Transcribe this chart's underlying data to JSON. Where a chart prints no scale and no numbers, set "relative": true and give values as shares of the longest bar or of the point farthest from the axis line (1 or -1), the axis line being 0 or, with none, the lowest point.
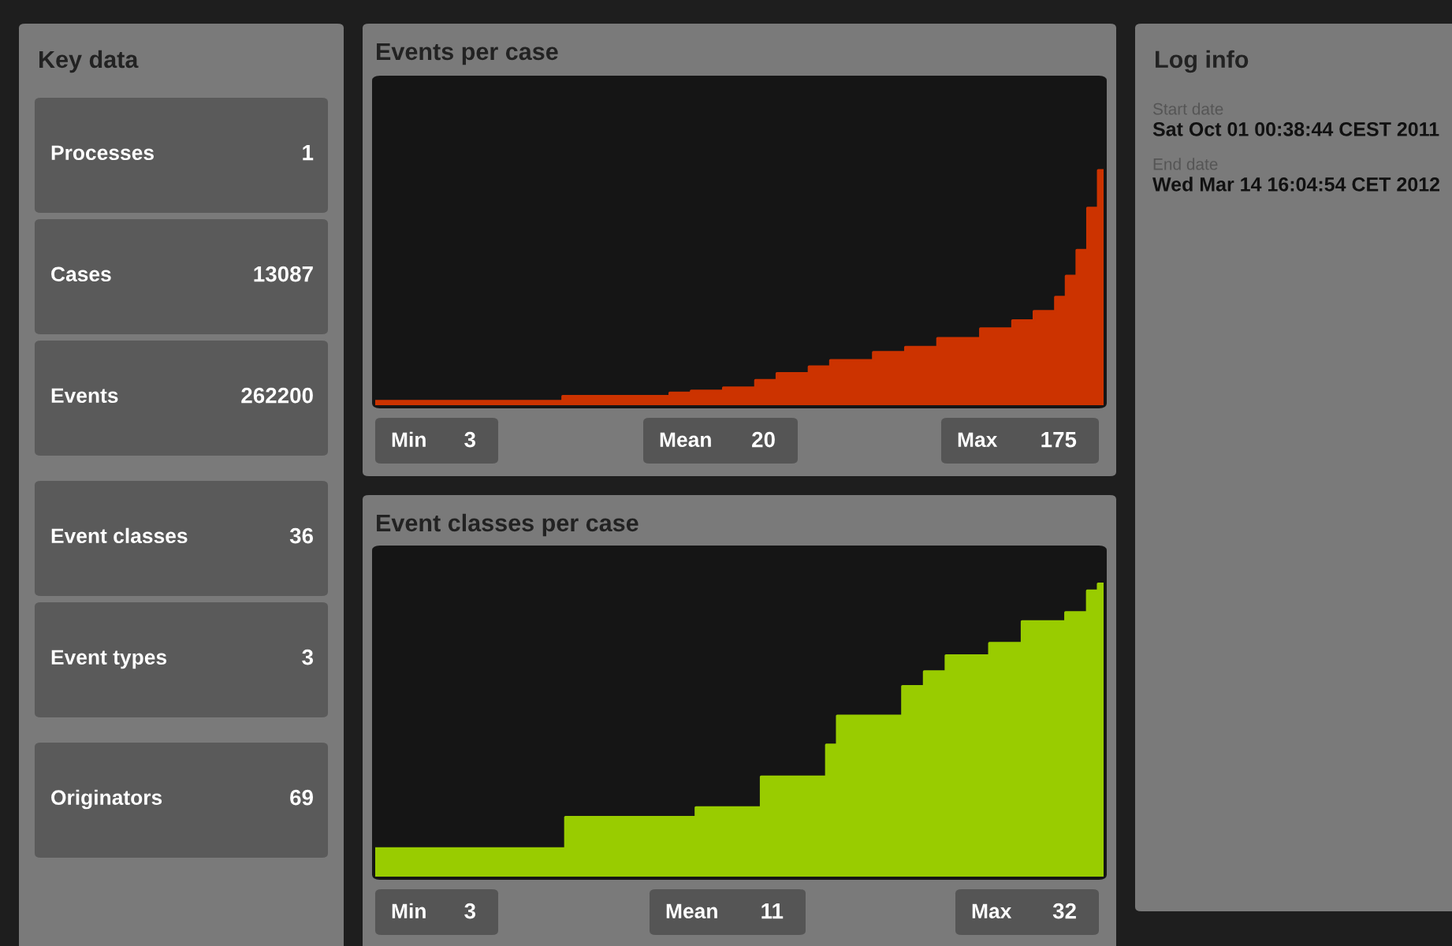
{
  "chart_data": [
    {
      "type": "other",
      "title": "Key data",
      "annotations": [
        "Processes",
        "1",
        "Cases",
        "13087",
        "Events",
        "262200",
        "Event classes",
        "36",
        "Event types",
        "3",
        "Originators",
        "69"
      ]
    },
    {
      "type": "area",
      "title": "Events per case",
      "color": "#cc3300",
      "relative": true,
      "annotations": [
        "Min",
        "3",
        "Mean",
        "20",
        "Max",
        "175"
      ],
      "categories": [
        null,
        null,
        null,
        null,
        null,
        null,
        null,
        null,
        null,
        null,
        null,
        null,
        null,
        null,
        null,
        null,
        null,
        null,
        null,
        null,
        null,
        null,
        null,
        null,
        null,
        null,
        null,
        null,
        null,
        null,
        null,
        null,
        null,
        null,
        null,
        null,
        null,
        null,
        null,
        null,
        null,
        null,
        null,
        null,
        null,
        null,
        null,
        null,
        null,
        null,
        null,
        null,
        null,
        null,
        null,
        null,
        null,
        null,
        null,
        null,
        null,
        null,
        null,
        null,
        null,
        null,
        null,
        null,
        null
      ],
      "values": [
        0.017,
        0.017,
        0.017,
        0.017,
        0.017,
        0.017,
        0.017,
        0.017,
        0.017,
        0.017,
        0.017,
        0.017,
        0.017,
        0.017,
        0.017,
        0.017,
        0.017,
        0.017,
        0.038,
        0.038,
        0.038,
        0.038,
        0.038,
        0.038,
        0.038,
        0.038,
        0.038,
        0.038,
        0.052,
        0.052,
        0.061,
        0.061,
        0.061,
        0.074,
        0.074,
        0.074,
        0.106,
        0.106,
        0.135,
        0.135,
        0.135,
        0.164,
        0.164,
        0.191,
        0.191,
        0.191,
        0.191,
        0.225,
        0.225,
        0.225,
        0.247,
        0.247,
        0.247,
        0.285,
        0.285,
        0.285,
        0.285,
        0.326,
        0.326,
        0.326,
        0.36,
        0.36,
        0.4,
        0.4,
        0.46,
        0.55,
        0.66,
        0.84,
        1.0
      ],
      "grid": false
    },
    {
      "type": "area",
      "title": "Event classes per case",
      "color": "#99cc00",
      "relative": true,
      "annotations": [
        "Min",
        "3",
        "Mean",
        "11",
        "Max",
        "32"
      ],
      "categories": [
        null,
        null,
        null,
        null,
        null,
        null,
        null,
        null,
        null,
        null,
        null,
        null,
        null,
        null,
        null,
        null,
        null,
        null,
        null,
        null,
        null,
        null,
        null,
        null,
        null,
        null,
        null,
        null,
        null,
        null,
        null,
        null,
        null,
        null,
        null,
        null,
        null,
        null,
        null,
        null,
        null,
        null,
        null,
        null,
        null,
        null,
        null,
        null,
        null,
        null,
        null,
        null,
        null,
        null,
        null,
        null,
        null,
        null,
        null,
        null,
        null,
        null,
        null,
        null,
        null,
        null,
        null,
        null
      ],
      "values": [
        0.096,
        0.096,
        0.096,
        0.096,
        0.096,
        0.096,
        0.096,
        0.096,
        0.096,
        0.096,
        0.096,
        0.096,
        0.096,
        0.096,
        0.096,
        0.096,
        0.096,
        0.096,
        0.203,
        0.203,
        0.203,
        0.203,
        0.203,
        0.203,
        0.203,
        0.203,
        0.203,
        0.203,
        0.203,
        0.203,
        0.236,
        0.236,
        0.236,
        0.236,
        0.236,
        0.236,
        0.341,
        0.341,
        0.341,
        0.341,
        0.341,
        0.341,
        0.45,
        0.549,
        0.549,
        0.549,
        0.549,
        0.549,
        0.549,
        0.65,
        0.65,
        0.7,
        0.7,
        0.755,
        0.755,
        0.755,
        0.755,
        0.797,
        0.797,
        0.797,
        0.871,
        0.871,
        0.871,
        0.871,
        0.902,
        0.902,
        0.976,
        1.0
      ],
      "grid": false
    },
    {
      "type": "other",
      "title": "Log info",
      "annotations": [
        "Start date",
        "Sat Oct 01 00:38:44 CEST 2011",
        "End date",
        "Wed Mar 14 16:04:54 CET 2012"
      ]
    }
  ]
}
